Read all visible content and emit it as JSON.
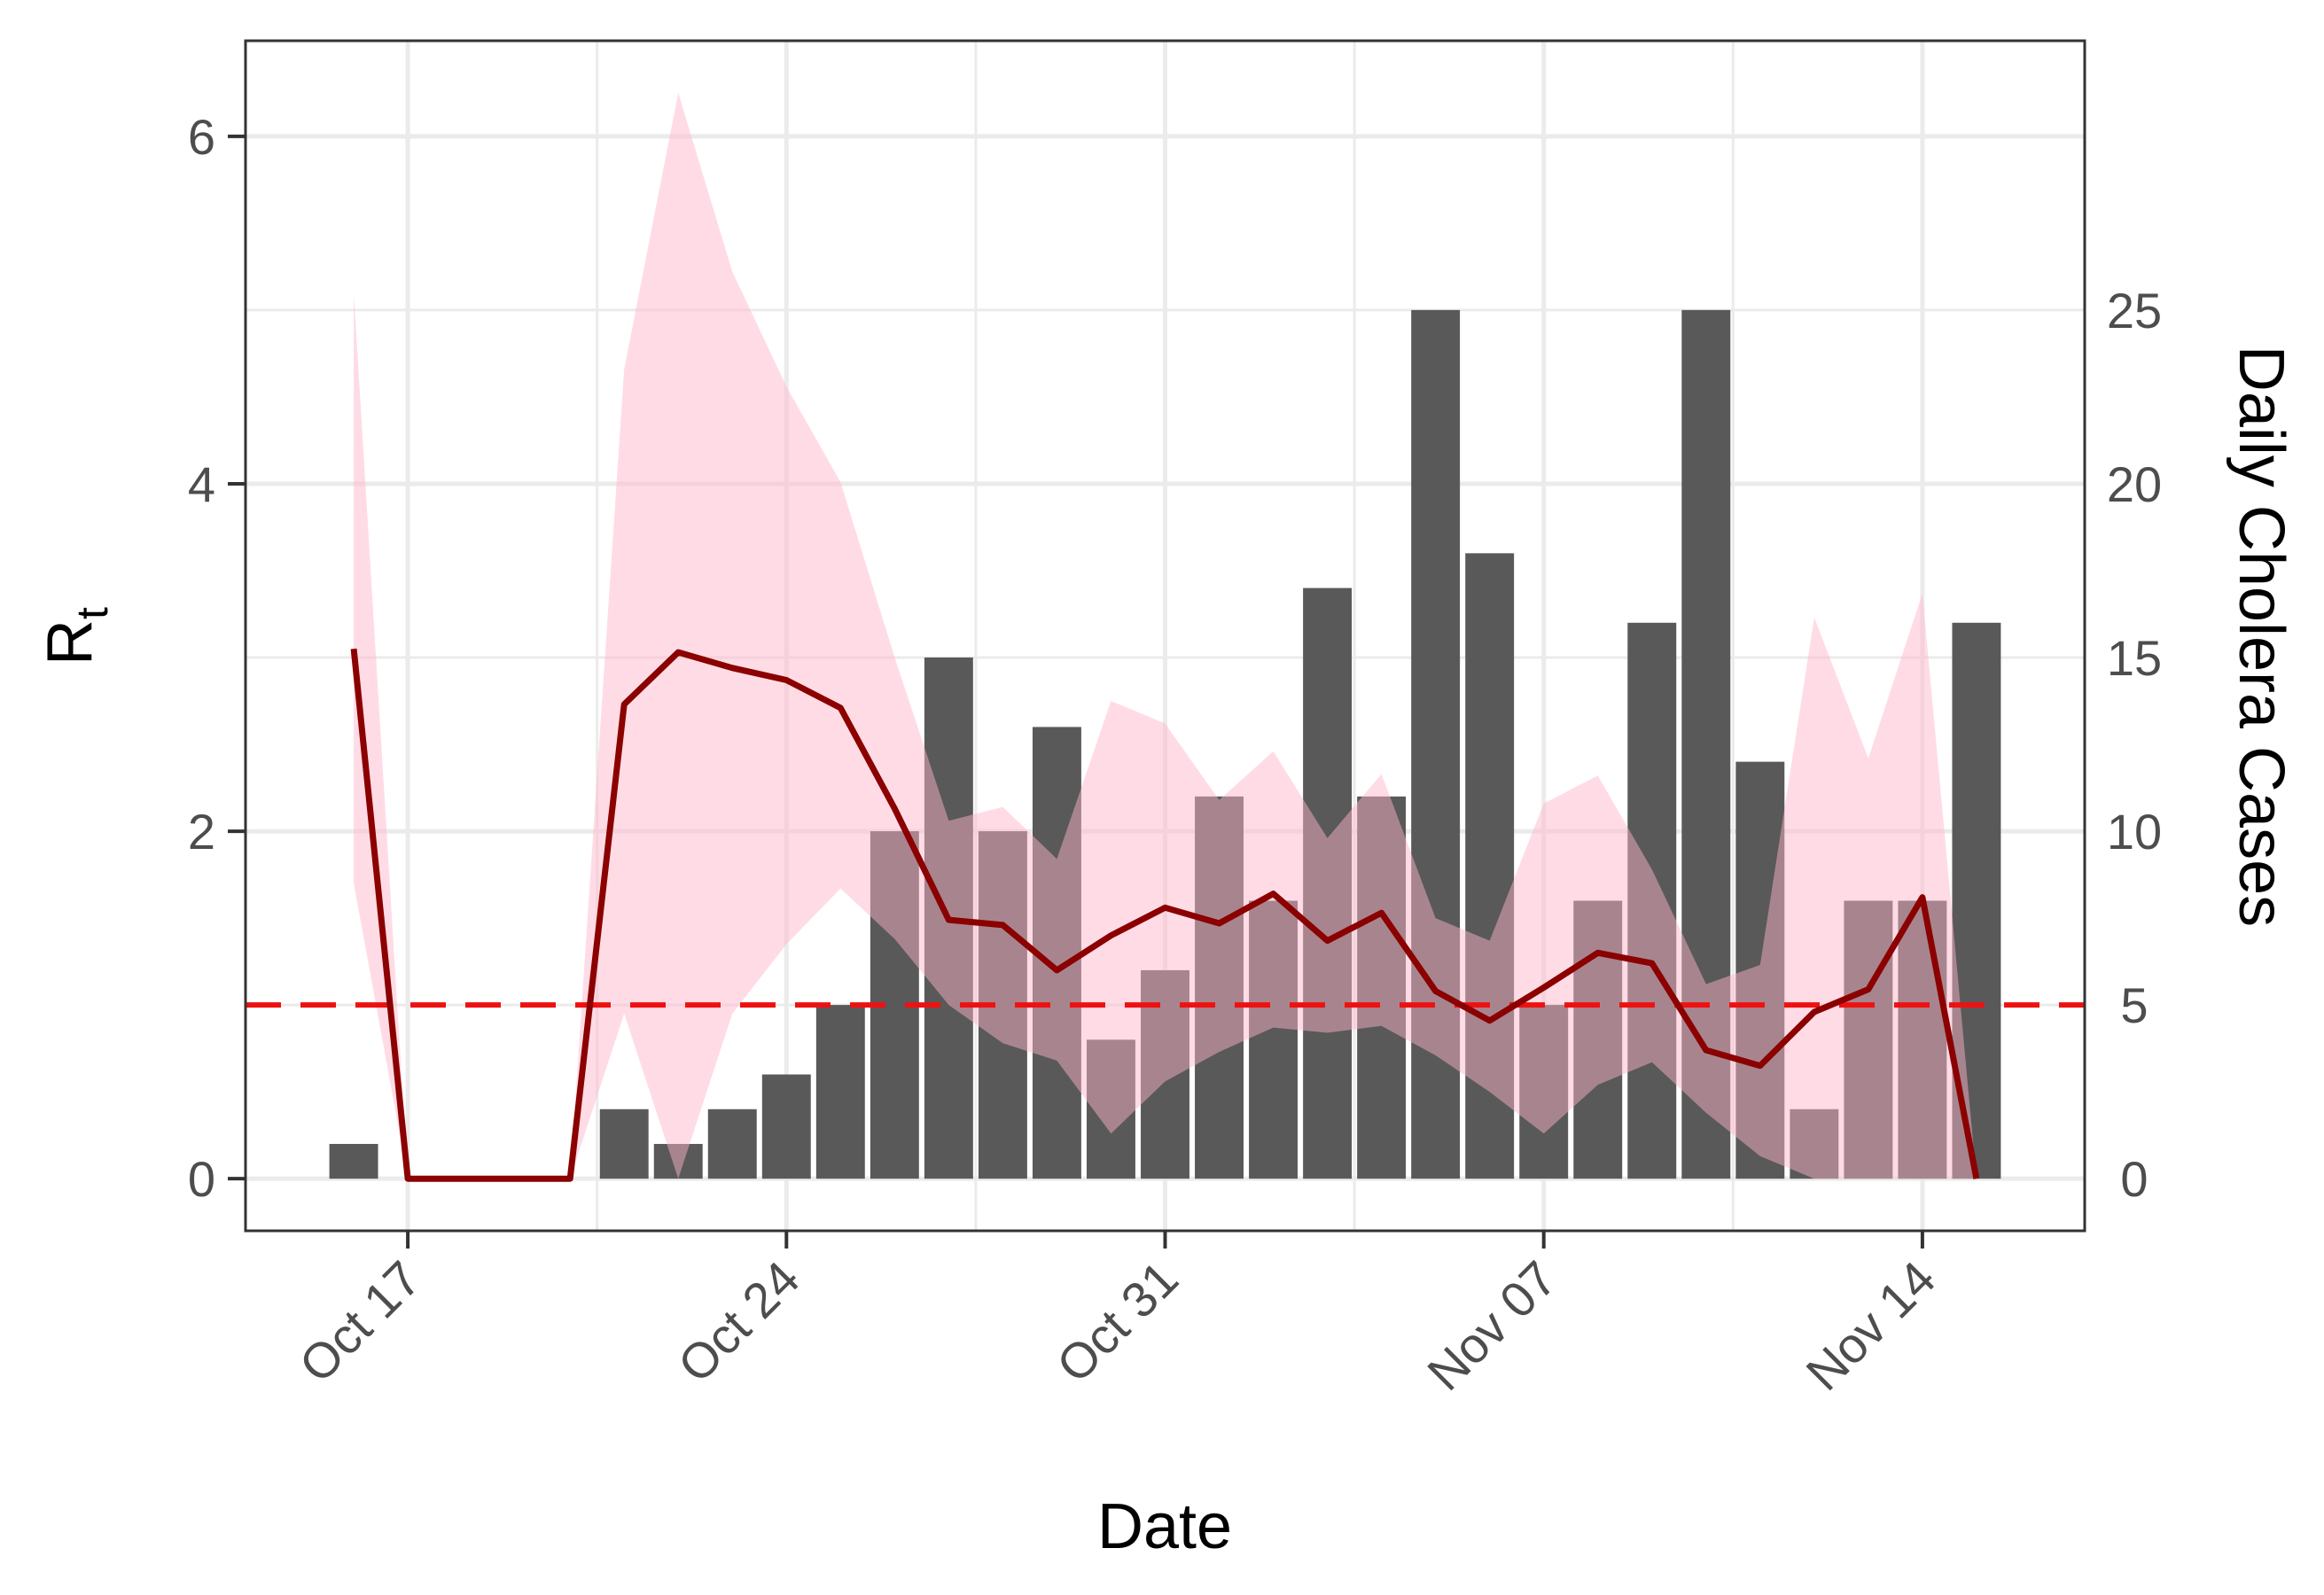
{
  "chart_data": {
    "type": "bar",
    "xlabel": "Date",
    "ylabel_left": {
      "base": "R",
      "sub": "t"
    },
    "ylabel_right": "Daily Cholera Cases",
    "x_ticks": [
      {
        "date": "2022-10-17",
        "label": "Oct 17"
      },
      {
        "date": "2022-10-24",
        "label": "Oct 24"
      },
      {
        "date": "2022-10-31",
        "label": "Oct 31"
      },
      {
        "date": "2022-11-07",
        "label": "Nov 07"
      },
      {
        "date": "2022-11-14",
        "label": "Nov 14"
      }
    ],
    "y_left_ticks": [
      "0",
      "2",
      "4",
      "6"
    ],
    "y_right_ticks": [
      "0",
      "5",
      "10",
      "15",
      "20",
      "25"
    ],
    "x_range": [
      "2022-10-14",
      "2022-11-17"
    ],
    "y_left_range": [
      -0.3,
      6.55
    ],
    "y_right_range": [
      -1.5,
      32.75
    ],
    "reference_line": {
      "y": 1,
      "color": "#ee1111",
      "style": "dashed"
    },
    "grid": true,
    "colors": {
      "bars": "#595959",
      "line": "#8b0000",
      "band": "#ffb6c8",
      "panel_border": "#333333",
      "grid": "#ebebeb"
    },
    "cases": {
      "name": "Daily Cholera Cases",
      "dates": [
        "2022-10-16",
        "2022-10-22",
        "2022-10-23",
        "2022-10-24",
        "2022-10-25",
        "2022-10-26",
        "2022-10-27",
        "2022-10-28",
        "2022-10-29",
        "2022-10-30",
        "2022-10-31",
        "2022-11-01",
        "2022-11-02",
        "2022-11-03",
        "2022-11-04",
        "2022-11-05",
        "2022-11-06",
        "2022-11-07",
        "2022-11-08",
        "2022-11-09",
        "2022-11-10",
        "2022-11-11",
        "2022-11-12",
        "2022-11-13",
        "2022-11-14",
        "2022-11-15"
      ],
      "values": [
        1,
        1,
        2,
        3,
        5,
        10,
        15,
        10,
        13,
        4,
        6,
        11,
        8,
        17,
        11,
        25,
        18,
        5,
        8,
        16,
        25,
        12,
        2,
        8,
        8,
        16
      ],
      "extra": [
        {
          "date": "2022-10-21",
          "value": 2
        }
      ]
    },
    "rt": {
      "dates": [
        "2022-10-16",
        "2022-10-17",
        "2022-10-18",
        "2022-10-19",
        "2022-10-20",
        "2022-10-21",
        "2022-10-22",
        "2022-10-23",
        "2022-10-24",
        "2022-10-25",
        "2022-10-26",
        "2022-10-27",
        "2022-10-28",
        "2022-10-29",
        "2022-10-30",
        "2022-10-31",
        "2022-11-01",
        "2022-11-02",
        "2022-11-03",
        "2022-11-04",
        "2022-11-05",
        "2022-11-06",
        "2022-11-07",
        "2022-11-08",
        "2022-11-09",
        "2022-11-10",
        "2022-11-11",
        "2022-11-12",
        "2022-11-13",
        "2022-11-14",
        "2022-11-15"
      ],
      "mean": [
        3.05,
        0,
        0,
        0,
        0,
        2.73,
        3.03,
        2.94,
        2.87,
        2.71,
        2.13,
        1.49,
        1.46,
        1.2,
        1.4,
        1.56,
        1.47,
        1.64,
        1.37,
        1.53,
        1.08,
        0.91,
        1.1,
        1.3,
        1.24,
        0.74,
        0.65,
        0.96,
        1.09,
        1.62,
        0
      ],
      "lower": [
        1.7,
        0,
        0,
        0,
        0,
        0.95,
        0.0,
        0.95,
        1.35,
        1.67,
        1.38,
        1.0,
        0.78,
        0.68,
        0.26,
        0.56,
        0.73,
        0.87,
        0.84,
        0.88,
        0.71,
        0.5,
        0.26,
        0.54,
        0.67,
        0.38,
        0.13,
        0.0,
        0.0,
        0.0,
        0.0
      ],
      "upper": [
        5.1,
        0,
        0,
        0,
        0,
        4.66,
        6.25,
        5.22,
        4.56,
        4.01,
        3.0,
        2.06,
        2.14,
        1.84,
        2.75,
        2.62,
        2.18,
        2.46,
        1.96,
        2.33,
        1.5,
        1.37,
        2.16,
        2.32,
        1.78,
        1.12,
        1.23,
        3.23,
        2.42,
        3.37,
        0.0
      ]
    }
  }
}
